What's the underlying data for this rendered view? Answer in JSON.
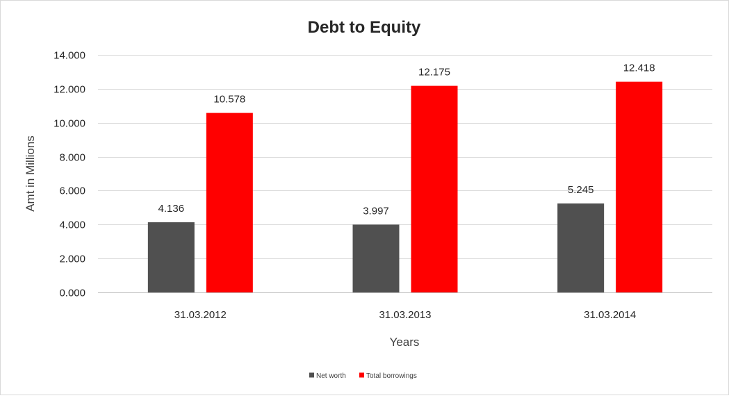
{
  "chart_data": {
    "type": "bar",
    "title": "Debt to Equity",
    "xlabel": "Years",
    "ylabel": "Amt in Millions",
    "categories": [
      "31.03.2012",
      "31.03.2013",
      "31.03.2014"
    ],
    "series": [
      {
        "name": "Net worth",
        "color": "#505050",
        "values": [
          4.136,
          3.997,
          5.245
        ],
        "labels": [
          "4.136",
          "3.997",
          "5.245"
        ]
      },
      {
        "name": "Total borrowings",
        "color": "#ff0000",
        "values": [
          10.578,
          12.175,
          12.418
        ],
        "labels": [
          "10.578",
          "12.175",
          "12.418"
        ]
      }
    ],
    "ylim": [
      0,
      14
    ],
    "yticks": [
      "0.000",
      "2.000",
      "4.000",
      "6.000",
      "8.000",
      "10.000",
      "12.000",
      "14.000"
    ],
    "grid": true,
    "legend_position": "bottom"
  }
}
